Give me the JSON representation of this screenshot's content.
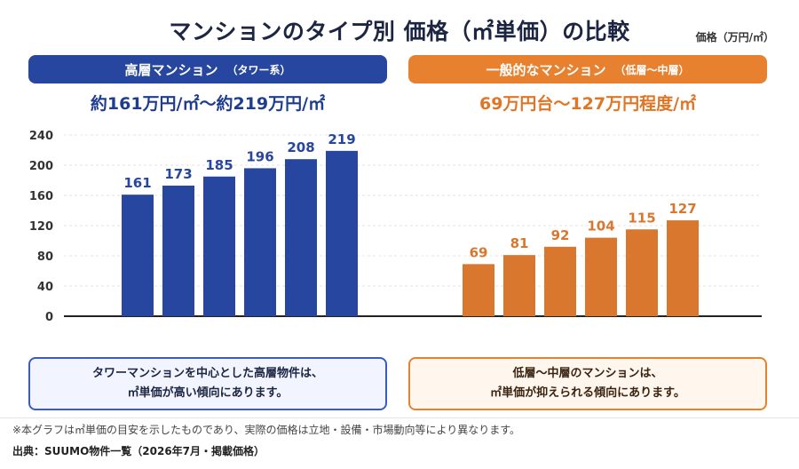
{
  "header": {
    "title": "マンションのタイプ別 価格（㎡単価）の比較",
    "unit": "価格（万円/㎡）"
  },
  "left_panel": {
    "banner_main": "高層マンション",
    "banner_sub": "（タワー系）",
    "range": "約161万円/㎡〜約219万円/㎡",
    "note_line1": "タワーマンションを中心とした高層物件は、",
    "note_line2": "㎡単価が高い傾向にあります。",
    "color": "#2746a0"
  },
  "right_panel": {
    "banner_main": "一般的なマンション",
    "banner_sub": "（低層〜中層）",
    "range": "69万円台〜127万円程度/㎡",
    "note_line1": "低層〜中層のマンションは、",
    "note_line2": "㎡単価が抑えられる傾向にあります。",
    "color": "#d9772f"
  },
  "footer": {
    "footnote": "※本グラフは㎡単価の目安を示したものであり、実際の価格は立地・設備・市場動向等により異なります。",
    "source": "出典：SUUMO物件一覧（2026年7月・掲載価格）"
  },
  "chart_data": {
    "type": "bar",
    "ylabel": "価格（万円/㎡）",
    "ylim": [
      0,
      240
    ],
    "yticks": [
      0,
      40,
      80,
      120,
      160,
      200,
      240
    ],
    "grid": true,
    "series": [
      {
        "name": "高層マンション",
        "values": [
          161,
          173,
          185,
          196,
          208,
          219
        ],
        "color": "#2746a0"
      },
      {
        "name": "一般的なマンション",
        "values": [
          69,
          81,
          92,
          104,
          115,
          127
        ],
        "color": "#d9772f"
      }
    ]
  }
}
